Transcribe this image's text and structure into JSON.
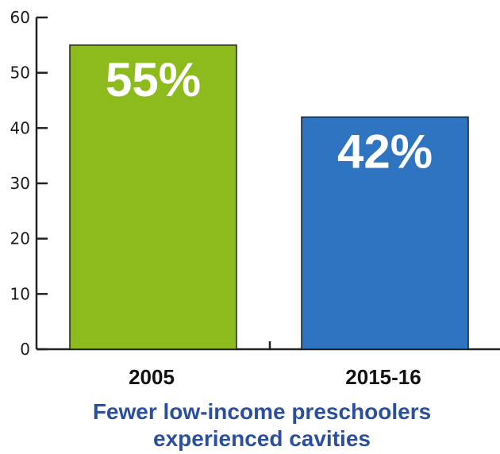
{
  "chart_data": {
    "type": "bar",
    "categories": [
      "2005",
      "2015-16"
    ],
    "values": [
      55,
      42
    ],
    "data_labels": [
      "55%",
      "42%"
    ],
    "colors": [
      "#8dba1c",
      "#2f74c0"
    ],
    "title": "",
    "xlabel": "",
    "ylabel": "",
    "ylim": [
      0,
      60
    ],
    "yticks": [
      0,
      10,
      20,
      30,
      40,
      50,
      60
    ],
    "grid": false,
    "caption_lines": [
      "Fewer low-income preschoolers",
      "experienced cavities"
    ]
  }
}
